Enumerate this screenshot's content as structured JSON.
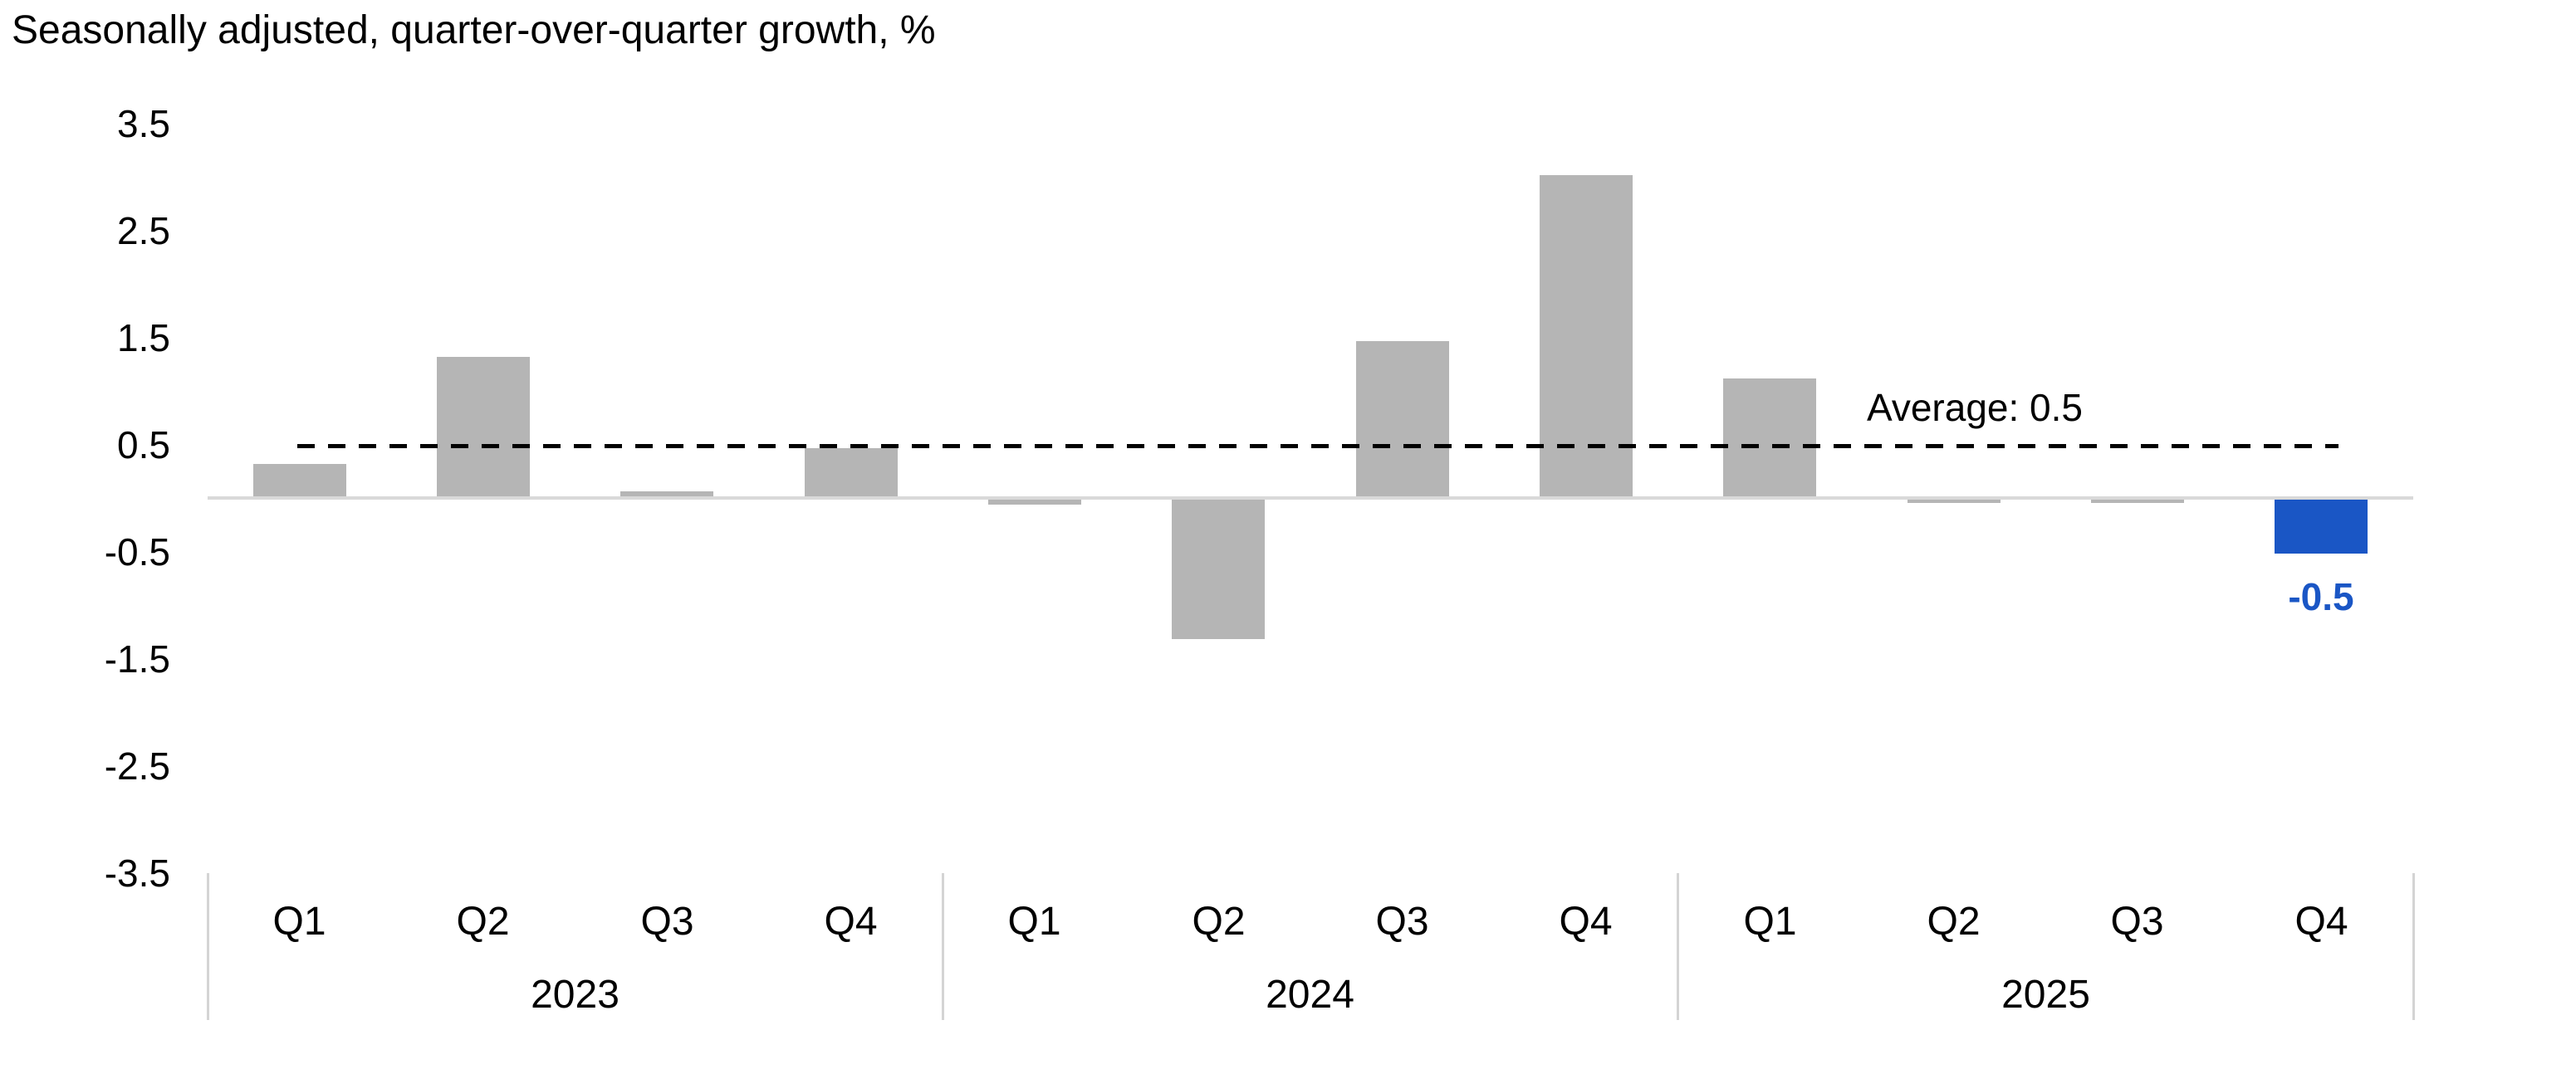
{
  "chart_data": {
    "type": "bar",
    "title": "Seasonally adjusted, quarter-over-quarter growth, %",
    "xlabel": "",
    "ylabel": "",
    "ylim": [
      -3.5,
      3.5
    ],
    "yticks": [
      3.5,
      2.5,
      1.5,
      0.5,
      -0.5,
      -1.5,
      -2.5,
      -3.5
    ],
    "grid": "off",
    "legend": "none",
    "groups": [
      {
        "year": "2023",
        "quarters": [
          "Q1",
          "Q2",
          "Q3",
          "Q4"
        ],
        "values": [
          0.3,
          1.3,
          0.05,
          0.45
        ]
      },
      {
        "year": "2024",
        "quarters": [
          "Q1",
          "Q2",
          "Q3",
          "Q4"
        ],
        "values": [
          -0.05,
          -1.3,
          1.45,
          3.0
        ]
      },
      {
        "year": "2025",
        "quarters": [
          "Q1",
          "Q2",
          "Q3",
          "Q4"
        ],
        "values": [
          1.1,
          -0.03,
          -0.03,
          -0.5
        ]
      }
    ],
    "highlight": {
      "year": "2025",
      "quarter": "Q4",
      "value": -0.5,
      "data_label": "-0.5"
    },
    "average_line": {
      "value": 0.5,
      "label": "Average: 0.5",
      "style": "dashed"
    },
    "colors": {
      "bar": "#B5B5B5",
      "highlight_bar": "#1A56C5",
      "highlight_label": "#1A56C5",
      "zero_axis": "#D9D9D9",
      "separator": "#D4D4D4",
      "average_line": "#000000",
      "text": "#000000"
    }
  }
}
